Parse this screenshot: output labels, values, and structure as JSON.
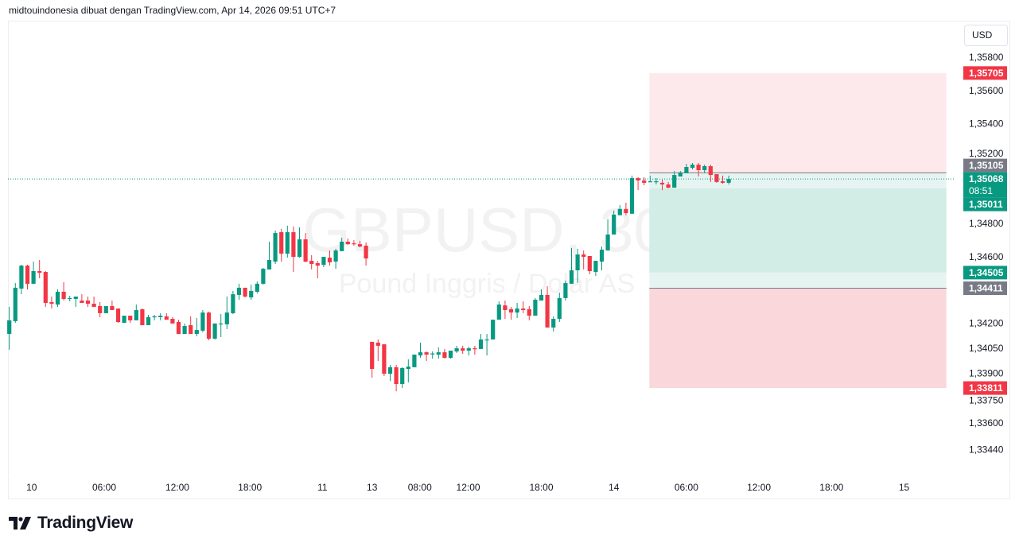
{
  "header": {
    "attribution": "midtouindonesia dibuat dengan TradingView.com, Apr 14, 2026 09:51 UTC+7"
  },
  "currency_button": "USD",
  "footer": {
    "brand": "TradingView"
  },
  "chart_data": {
    "type": "candlestick",
    "symbol": "GBPUSD, 30",
    "description": "Pound Inggris / Dolar AS",
    "colors": {
      "up": "#089981",
      "down": "#f23645",
      "last_line": "#089981"
    },
    "ohlc": [
      [
        1.34136,
        1.34299,
        1.34041,
        1.34218
      ],
      [
        1.34213,
        1.34442,
        1.34203,
        1.34414
      ],
      [
        1.34409,
        1.34552,
        1.34375,
        1.34547
      ],
      [
        1.34547,
        1.34552,
        1.34404,
        1.34438
      ],
      [
        1.34438,
        1.34571,
        1.34438,
        1.34514
      ],
      [
        1.34514,
        1.34581,
        1.34471,
        1.34504
      ],
      [
        1.34509,
        1.34514,
        1.34299,
        1.34323
      ],
      [
        1.34328,
        1.34361,
        1.34289,
        1.34318
      ],
      [
        1.34313,
        1.34404,
        1.34299,
        1.3439
      ],
      [
        1.3439,
        1.34447,
        1.34337,
        1.34347
      ],
      [
        1.34347,
        1.34366,
        1.34332,
        1.34352
      ],
      [
        1.34347,
        1.34361,
        1.34299,
        1.34361
      ],
      [
        1.34337,
        1.34375,
        1.34323,
        1.34323
      ],
      [
        1.34337,
        1.34361,
        1.34299,
        1.34318
      ],
      [
        1.34318,
        1.34361,
        1.34299,
        1.34299
      ],
      [
        1.34304,
        1.34328,
        1.34237,
        1.34261
      ],
      [
        1.34261,
        1.34304,
        1.34261,
        1.34304
      ],
      [
        1.34304,
        1.34337,
        1.3428,
        1.3428
      ],
      [
        1.34289,
        1.34289,
        1.34203,
        1.34208
      ],
      [
        1.34203,
        1.34246,
        1.34203,
        1.34246
      ],
      [
        1.34246,
        1.34246,
        1.34203,
        1.34218
      ],
      [
        1.34218,
        1.34313,
        1.34218,
        1.3428
      ],
      [
        1.34285,
        1.34289,
        1.34189,
        1.34189
      ],
      [
        1.34189,
        1.34251,
        1.34189,
        1.34237
      ],
      [
        1.34237,
        1.34251,
        1.34218,
        1.34242
      ],
      [
        1.34237,
        1.34261,
        1.34218,
        1.34246
      ],
      [
        1.34242,
        1.34261,
        1.34222,
        1.34222
      ],
      [
        1.34227,
        1.34237,
        1.34199,
        1.34199
      ],
      [
        1.34208,
        1.34222,
        1.34136,
        1.34136
      ],
      [
        1.34136,
        1.34199,
        1.34136,
        1.34184
      ],
      [
        1.34189,
        1.34242,
        1.34136,
        1.34136
      ],
      [
        1.34136,
        1.34232,
        1.34122,
        1.3416
      ],
      [
        1.34156,
        1.3428,
        1.34146,
        1.34265
      ],
      [
        1.34265,
        1.3427,
        1.34098,
        1.34108
      ],
      [
        1.34108,
        1.34199,
        1.34103,
        1.34199
      ],
      [
        1.34194,
        1.34256,
        1.34117,
        1.34199
      ],
      [
        1.34194,
        1.34361,
        1.34165,
        1.34265
      ],
      [
        1.34261,
        1.34395,
        1.34256,
        1.34375
      ],
      [
        1.34371,
        1.34438,
        1.34342,
        1.34414
      ],
      [
        1.34414,
        1.34414,
        1.34356,
        1.34361
      ],
      [
        1.34356,
        1.34433,
        1.34342,
        1.34395
      ],
      [
        1.3439,
        1.34452,
        1.3438,
        1.34438
      ],
      [
        1.34438,
        1.34533,
        1.34433,
        1.34528
      ],
      [
        1.34524,
        1.34691,
        1.34524,
        1.34581
      ],
      [
        1.34571,
        1.34758,
        1.34557,
        1.34743
      ],
      [
        1.34748,
        1.34768,
        1.34571,
        1.34619
      ],
      [
        1.34619,
        1.34787,
        1.34595,
        1.34748
      ],
      [
        1.34748,
        1.34782,
        1.34509,
        1.346
      ],
      [
        1.346,
        1.34777,
        1.34595,
        1.34705
      ],
      [
        1.34705,
        1.34743,
        1.34567,
        1.34571
      ],
      [
        1.34576,
        1.3461,
        1.34524,
        1.34557
      ],
      [
        1.34562,
        1.34576,
        1.34471,
        1.34547
      ],
      [
        1.34552,
        1.346,
        1.34538,
        1.346
      ],
      [
        1.34595,
        1.34638,
        1.34547,
        1.34567
      ],
      [
        1.34571,
        1.34648,
        1.34528,
        1.34638
      ],
      [
        1.34634,
        1.34715,
        1.34634,
        1.34691
      ],
      [
        1.34691,
        1.3471,
        1.34672,
        1.34676
      ],
      [
        1.34681,
        1.347,
        1.34667,
        1.34676
      ],
      [
        1.34676,
        1.34696,
        1.34657,
        1.34662
      ],
      [
        1.34667,
        1.34686,
        1.34547,
        1.3459
      ],
      [
        1.34089,
        1.34089,
        1.33873,
        1.33926
      ],
      [
        1.34084,
        1.34103,
        1.33974,
        1.34065
      ],
      [
        1.34074,
        1.34074,
        1.33883,
        1.33897
      ],
      [
        1.33897,
        1.3395,
        1.33854,
        1.33936
      ],
      [
        1.33936,
        1.3395,
        1.33792,
        1.33835
      ],
      [
        1.33835,
        1.33936,
        1.33811,
        1.33931
      ],
      [
        1.33926,
        1.33984,
        1.33845,
        1.3394
      ],
      [
        1.33936,
        1.34012,
        1.33936,
        1.34012
      ],
      [
        1.34007,
        1.34084,
        1.33993,
        1.34026
      ],
      [
        1.34026,
        1.34031,
        1.33974,
        1.34012
      ],
      [
        1.34017,
        1.34031,
        1.33988,
        1.34019
      ],
      [
        1.34012,
        1.34055,
        1.33988,
        1.34026
      ],
      [
        1.34026,
        1.34046,
        1.33988,
        1.33993
      ],
      [
        1.33993,
        1.34036,
        1.33988,
        1.34036
      ],
      [
        1.34031,
        1.34065,
        1.34022,
        1.3405
      ],
      [
        1.3405,
        1.34065,
        1.34017,
        1.34036
      ],
      [
        1.34036,
        1.3406,
        1.34007,
        1.3405
      ],
      [
        1.3405,
        1.34065,
        1.34012,
        1.34046
      ],
      [
        1.34046,
        1.34136,
        1.34046,
        1.34103
      ],
      [
        1.34098,
        1.34136,
        1.34007,
        1.34103
      ],
      [
        1.34103,
        1.34222,
        1.34103,
        1.34222
      ],
      [
        1.34222,
        1.34332,
        1.34222,
        1.34313
      ],
      [
        1.34308,
        1.34337,
        1.34227,
        1.3428
      ],
      [
        1.34285,
        1.34299,
        1.34222,
        1.34265
      ],
      [
        1.34265,
        1.34323,
        1.34232,
        1.34289
      ],
      [
        1.34289,
        1.34332,
        1.34261,
        1.3428
      ],
      [
        1.34285,
        1.34304,
        1.34218,
        1.34246
      ],
      [
        1.34246,
        1.34352,
        1.34246,
        1.34342
      ],
      [
        1.34337,
        1.34404,
        1.34337,
        1.34371
      ],
      [
        1.34371,
        1.34423,
        1.34175,
        1.34175
      ],
      [
        1.34175,
        1.34242,
        1.34151,
        1.34227
      ],
      [
        1.34227,
        1.34385,
        1.34208,
        1.34352
      ],
      [
        1.34352,
        1.34457,
        1.34337,
        1.34442
      ],
      [
        1.34438,
        1.34653,
        1.34438,
        1.34519
      ],
      [
        1.34519,
        1.34648,
        1.34442,
        1.34614
      ],
      [
        1.34614,
        1.34638,
        1.34524,
        1.346
      ],
      [
        1.34605,
        1.34605,
        1.34495,
        1.34514
      ],
      [
        1.34509,
        1.34576,
        1.34485,
        1.34576
      ],
      [
        1.34571,
        1.34662,
        1.34519,
        1.34643
      ],
      [
        1.34638,
        1.34825,
        1.34638,
        1.34734
      ],
      [
        1.34734,
        1.34878,
        1.34734,
        1.34854
      ],
      [
        1.3485,
        1.34911,
        1.3485,
        1.34888
      ],
      [
        1.34888,
        1.34925,
        1.3485,
        1.34863
      ],
      [
        1.34859,
        1.35088,
        1.34859,
        1.35073
      ],
      [
        1.35073,
        1.35078,
        1.35001,
        1.35059
      ],
      [
        1.35059,
        1.35078,
        1.3503,
        1.35045
      ],
      [
        1.3505,
        1.35088,
        1.3505,
        1.35054
      ],
      [
        1.3505,
        1.35073,
        1.35035,
        1.35054
      ],
      [
        1.35045,
        1.35064,
        1.35001,
        1.35035
      ],
      [
        1.35035,
        1.3505,
        1.35011,
        1.35016
      ],
      [
        1.35016,
        1.35116,
        1.35016,
        1.35092
      ],
      [
        1.35083,
        1.35116,
        1.35083,
        1.35107
      ],
      [
        1.35102,
        1.35159,
        1.35102,
        1.3514
      ],
      [
        1.35135,
        1.35164,
        1.35126,
        1.35154
      ],
      [
        1.35154,
        1.35164,
        1.35083,
        1.35121
      ],
      [
        1.35121,
        1.35154,
        1.35102,
        1.35145
      ],
      [
        1.35145,
        1.35154,
        1.3505,
        1.35092
      ],
      [
        1.35097,
        1.35097,
        1.35045,
        1.3505
      ],
      [
        1.35054,
        1.35088,
        1.3504,
        1.35045
      ],
      [
        1.35045,
        1.35088,
        1.35035,
        1.35068
      ]
    ],
    "y_ticks": [
      "1,35800",
      "1,35600",
      "1,35400",
      "1,35200",
      "1,34800",
      "1,34600",
      "1,34200",
      "1,34050",
      "1,33900",
      "1,33750",
      "1,33600",
      "1,33440"
    ],
    "x_ticks": [
      {
        "label": "10",
        "index": 3.7
      },
      {
        "label": "06:00",
        "index": 15.7
      },
      {
        "label": "12:00",
        "index": 27.8
      },
      {
        "label": "18:00",
        "index": 39.8
      },
      {
        "label": "11",
        "index": 51.8
      },
      {
        "label": "13",
        "index": 60
      },
      {
        "label": "08:00",
        "index": 67.9
      },
      {
        "label": "12:00",
        "index": 75.9
      },
      {
        "label": "18:00",
        "index": 88
      },
      {
        "label": "14",
        "index": 100
      },
      {
        "label": "06:00",
        "index": 112
      },
      {
        "label": "12:00",
        "index": 124
      },
      {
        "label": "18:00",
        "index": 136
      },
      {
        "label": "15",
        "index": 148
      }
    ],
    "last_price": {
      "value": "1,35068",
      "countdown": "08:51"
    },
    "price_badges": [
      {
        "value": "1,35705",
        "color": "#f23645"
      },
      {
        "value": "1,35105",
        "color": "#787b86"
      },
      {
        "value": "1,35011",
        "color": "#089981"
      },
      {
        "value": "1,34505",
        "color": "#089981"
      },
      {
        "value": "1,34411",
        "color": "#787b86"
      },
      {
        "value": "1,33811",
        "color": "#f23645"
      }
    ],
    "position_tool": {
      "start_index": 106,
      "end_index": 155,
      "zones": [
        {
          "from": 1.35705,
          "to": 1.35105,
          "color": "#fde9eb"
        },
        {
          "from": 1.35105,
          "to": 1.35011,
          "color": "#e6f4f1"
        },
        {
          "from": 1.35011,
          "to": 1.34505,
          "color": "#d2ece6"
        },
        {
          "from": 1.34505,
          "to": 1.34411,
          "color": "#e6f4f1"
        },
        {
          "from": 1.34411,
          "to": 1.33811,
          "color": "#f9d7db"
        }
      ],
      "lines": [
        1.35105,
        1.34411
      ]
    }
  }
}
